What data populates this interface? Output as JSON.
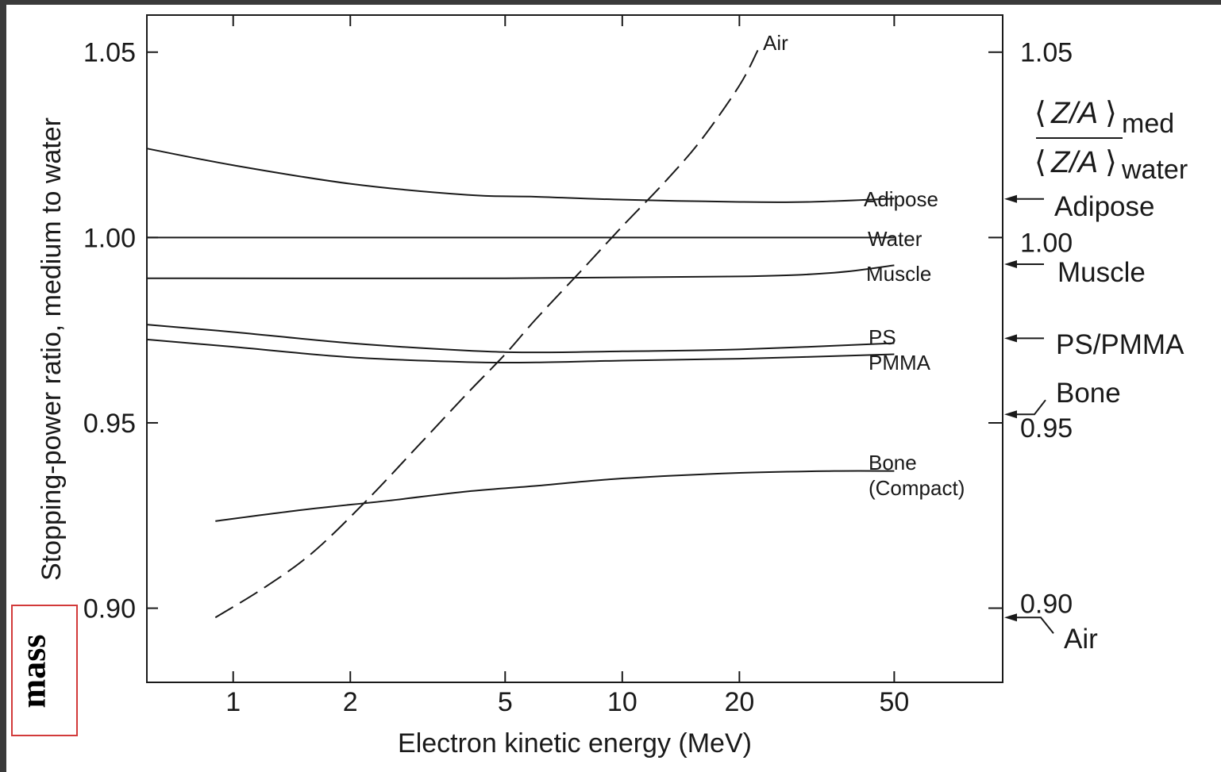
{
  "chart_data": {
    "type": "line",
    "xscale": "log",
    "xlim": [
      0.6,
      95
    ],
    "ylim": [
      0.88,
      1.06
    ],
    "grid": false,
    "xlabel": "Electron kinetic energy (MeV)",
    "ylabel": "Stopping-power ratio, medium to water",
    "x_ticks": [
      1,
      2,
      5,
      10,
      20,
      50
    ],
    "x_tick_labels": [
      "1",
      "2",
      "5",
      "10",
      "20",
      "50"
    ],
    "y_ticks": [
      0.9,
      0.95,
      1.0,
      1.05
    ],
    "y_tick_labels": [
      "0.90",
      "0.95",
      "1.00",
      "1.05"
    ],
    "right_y_tick_labels": [
      "0.90",
      "0.95",
      "1.00",
      "1.05"
    ],
    "series": [
      {
        "name": "Air",
        "style": "dashed",
        "x": [
          0.9,
          1.2,
          1.6,
          2.2,
          3.0,
          4.0,
          5.0,
          6.0,
          8.0,
          10.0,
          13.0,
          16.0,
          20.0,
          22.3
        ],
        "y": [
          0.8975,
          0.9055,
          0.915,
          0.929,
          0.944,
          0.958,
          0.9685,
          0.978,
          0.992,
          1.003,
          1.0155,
          1.0265,
          1.041,
          1.0505
        ]
      },
      {
        "name": "Adipose",
        "style": "solid",
        "x": [
          0.6,
          1.0,
          2.0,
          4.0,
          6.0,
          10.0,
          20.0,
          30.0,
          50.0
        ],
        "y": [
          1.024,
          1.0195,
          1.0145,
          1.0115,
          1.011,
          1.0102,
          1.0096,
          1.0096,
          1.0105
        ]
      },
      {
        "name": "Water",
        "style": "solid",
        "x": [
          0.6,
          50.0
        ],
        "y": [
          1.0,
          1.0
        ]
      },
      {
        "name": "Muscle",
        "style": "solid",
        "x": [
          0.6,
          5.0,
          20.0,
          35.0,
          50.0
        ],
        "y": [
          0.989,
          0.989,
          0.9895,
          0.9905,
          0.9925
        ]
      },
      {
        "name": "PS",
        "style": "solid",
        "x": [
          0.6,
          1.0,
          2.0,
          4.0,
          6.0,
          10.0,
          20.0,
          50.0
        ],
        "y": [
          0.9765,
          0.9745,
          0.9715,
          0.9695,
          0.969,
          0.9693,
          0.9698,
          0.9715
        ]
      },
      {
        "name": "PMMA",
        "style": "solid",
        "x": [
          0.6,
          1.0,
          2.0,
          4.0,
          6.0,
          10.0,
          20.0,
          50.0
        ],
        "y": [
          0.9725,
          0.9705,
          0.9677,
          0.9664,
          0.9663,
          0.9668,
          0.9673,
          0.9685
        ]
      },
      {
        "name": "Bone (Compact)",
        "style": "solid",
        "x": [
          0.9,
          1.5,
          2.5,
          4.0,
          6.0,
          10.0,
          20.0,
          35.0,
          50.0
        ],
        "y": [
          0.9235,
          0.9265,
          0.929,
          0.9315,
          0.933,
          0.935,
          0.9365,
          0.937,
          0.937
        ]
      }
    ],
    "curve_labels": {
      "air": "Air",
      "adipose": "Adipose",
      "water": "Water",
      "muscle": "Muscle",
      "ps": "PS",
      "pmma": "PMMA",
      "bone_1": "Bone",
      "bone_2": "(Compact)"
    },
    "right_axis": {
      "za_paren_open": "⟨",
      "za_paren_close": "⟩",
      "za_text": "Z/A",
      "za_sub_med": "med",
      "za_sub_water": "water",
      "markers": [
        {
          "label": "Adipose",
          "value": 1.0104
        },
        {
          "label": "Muscle",
          "value": 0.9928
        },
        {
          "label": "PS/PMMA",
          "value": 0.9728
        },
        {
          "label": "Bone",
          "value": 0.9523
        },
        {
          "label": "Air",
          "value": 0.8975
        }
      ]
    }
  },
  "annotation": {
    "mass_label": "mass",
    "border_color": "#d23a3a"
  }
}
